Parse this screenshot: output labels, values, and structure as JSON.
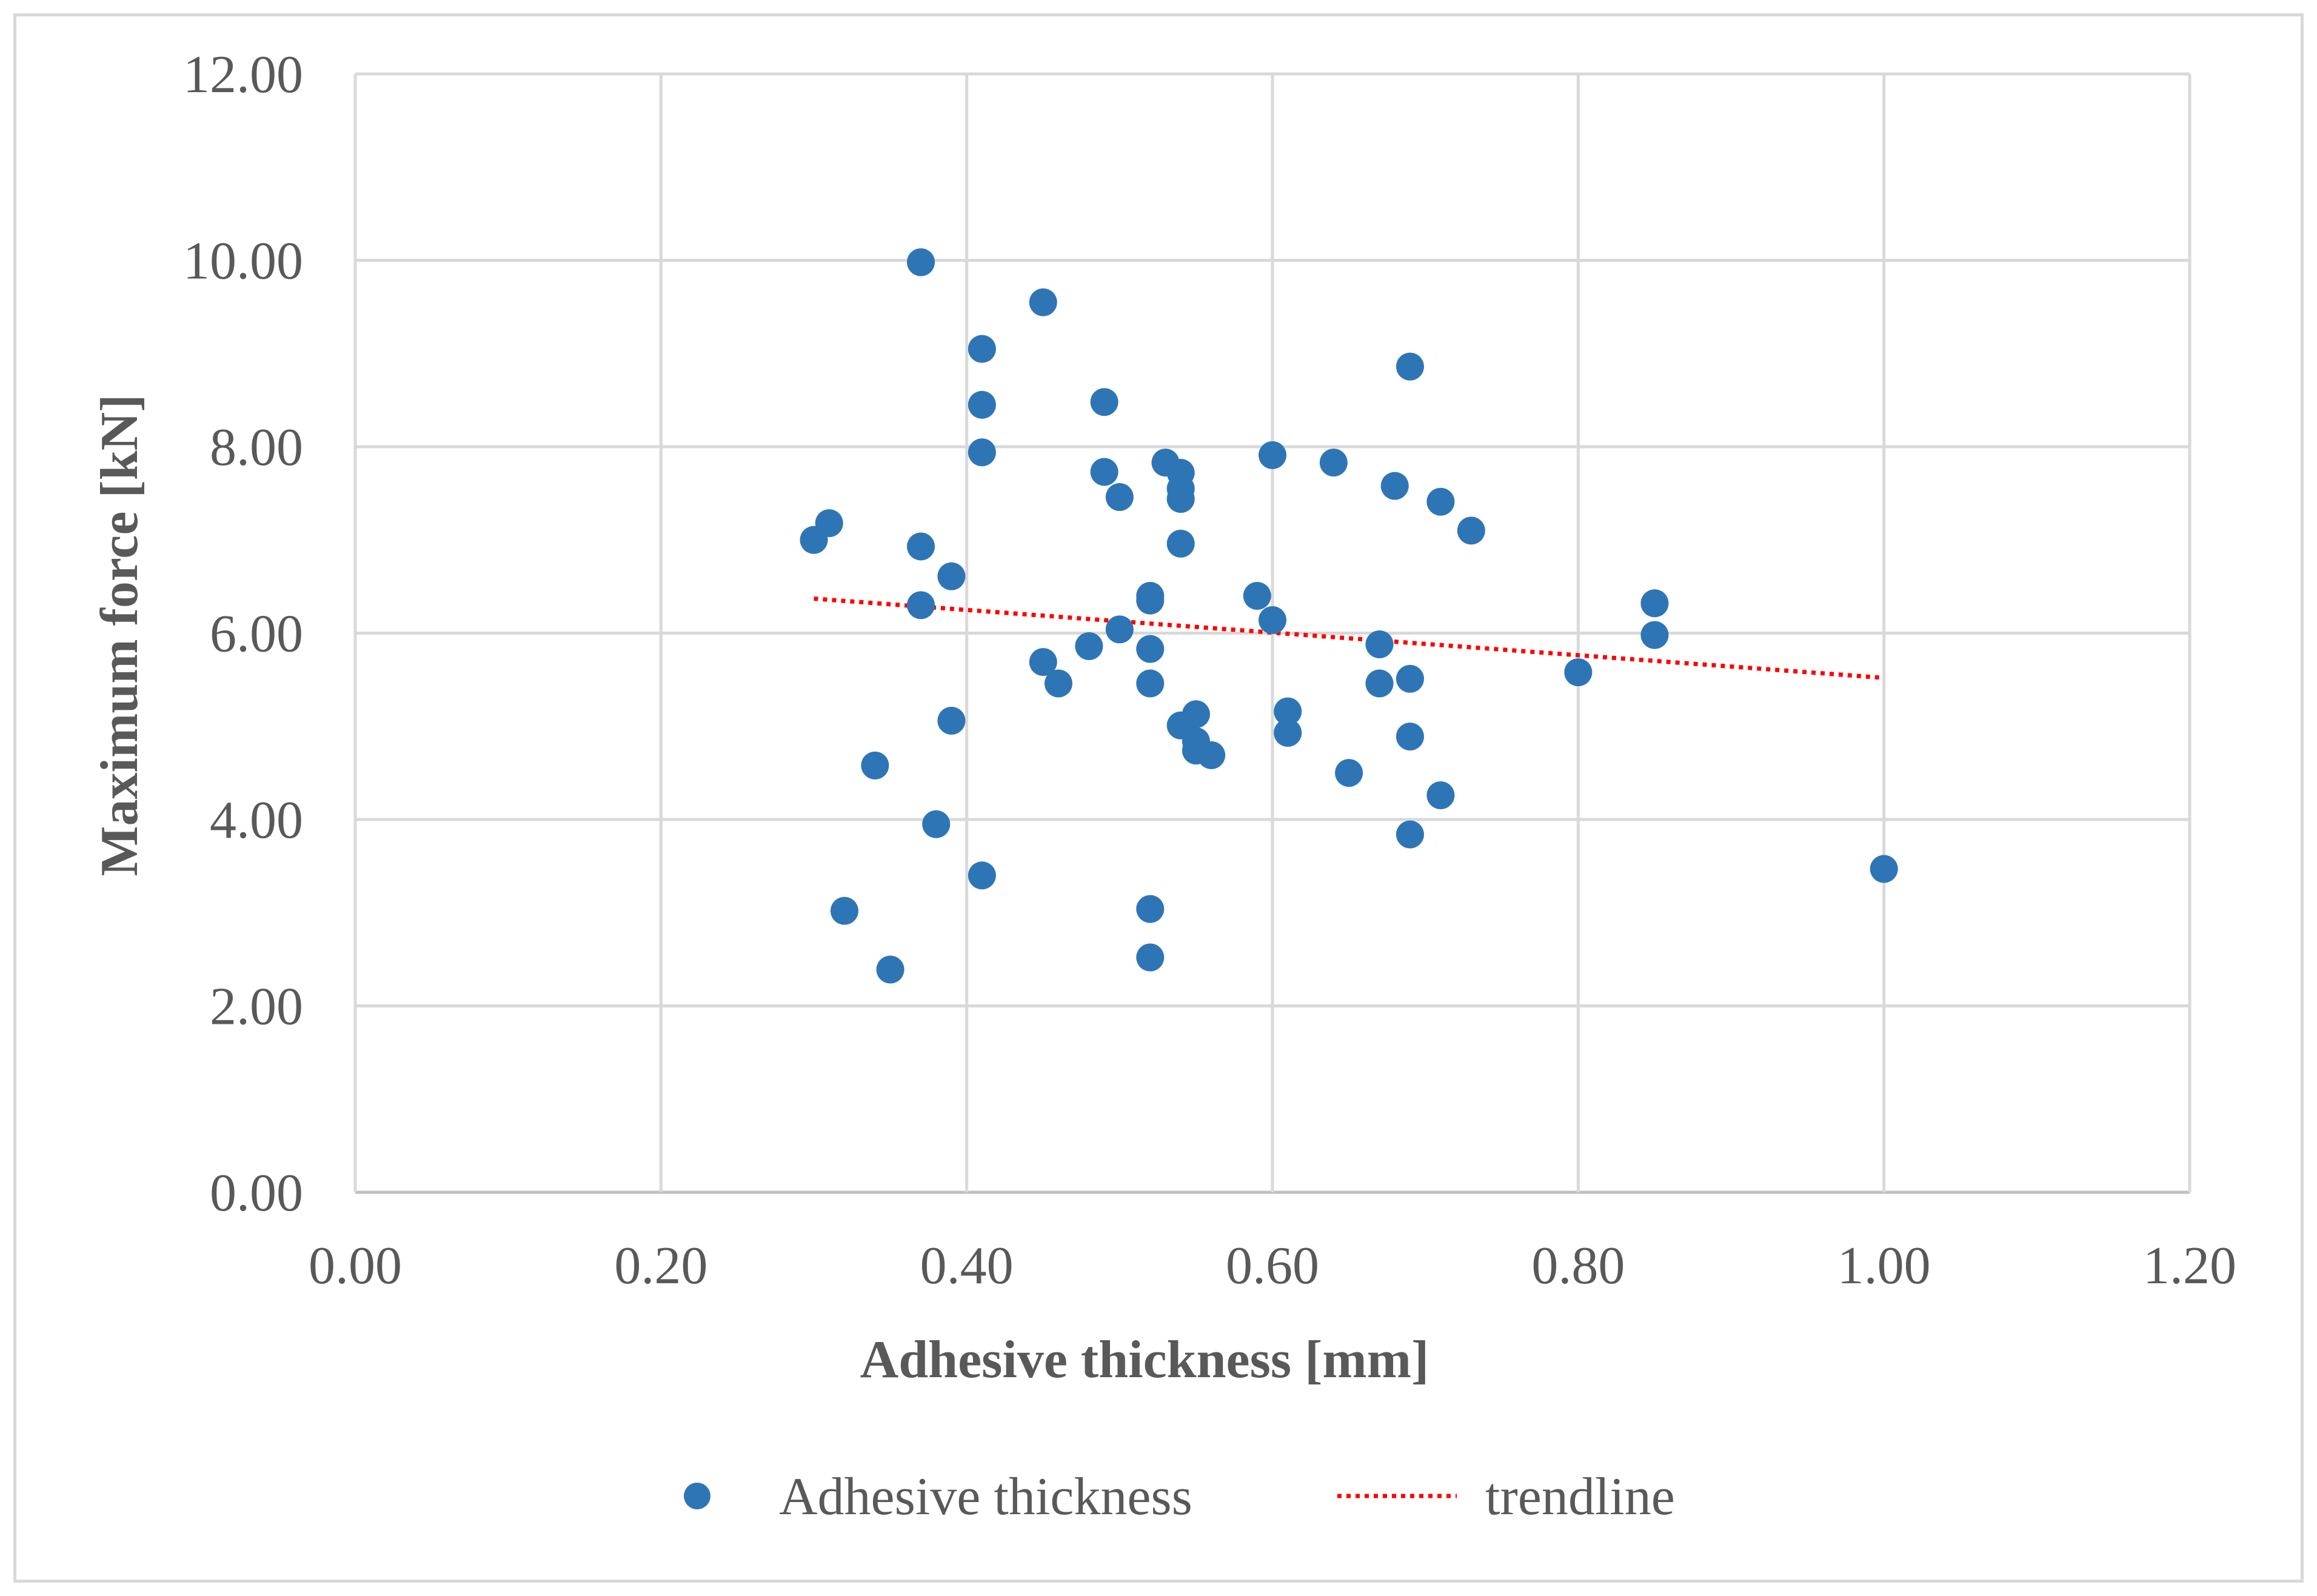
{
  "chart_data": {
    "type": "scatter",
    "title": "",
    "xlabel": "Adhesive thickness [mm]",
    "ylabel": "Maximum force [kN]",
    "xlim": [
      0,
      1.2
    ],
    "ylim": [
      0,
      12
    ],
    "x_ticks": [
      "0.00",
      "0.20",
      "0.40",
      "0.60",
      "0.80",
      "1.00",
      "1.20"
    ],
    "y_ticks": [
      "0.00",
      "2.00",
      "4.00",
      "6.00",
      "8.00",
      "10.00",
      "12.00"
    ],
    "grid": true,
    "legend_position": "bottom",
    "series": [
      {
        "name": "Adhesive thickness",
        "color": "#2e75b6",
        "marker": "circle",
        "points": [
          [
            0.3,
            7.0
          ],
          [
            0.31,
            7.18
          ],
          [
            0.32,
            3.02
          ],
          [
            0.34,
            4.58
          ],
          [
            0.35,
            2.39
          ],
          [
            0.37,
            9.98
          ],
          [
            0.37,
            6.93
          ],
          [
            0.37,
            6.3
          ],
          [
            0.38,
            3.95
          ],
          [
            0.39,
            6.61
          ],
          [
            0.39,
            5.06
          ],
          [
            0.41,
            8.45
          ],
          [
            0.41,
            9.05
          ],
          [
            0.41,
            7.94
          ],
          [
            0.41,
            3.4
          ],
          [
            0.45,
            9.55
          ],
          [
            0.45,
            5.69
          ],
          [
            0.46,
            5.46
          ],
          [
            0.48,
            5.86
          ],
          [
            0.49,
            8.48
          ],
          [
            0.49,
            7.73
          ],
          [
            0.5,
            6.04
          ],
          [
            0.5,
            7.46
          ],
          [
            0.52,
            6.35
          ],
          [
            0.52,
            6.4
          ],
          [
            0.52,
            5.83
          ],
          [
            0.52,
            3.04
          ],
          [
            0.52,
            2.52
          ],
          [
            0.52,
            5.46
          ],
          [
            0.53,
            7.83
          ],
          [
            0.54,
            7.72
          ],
          [
            0.54,
            7.55
          ],
          [
            0.54,
            7.44
          ],
          [
            0.54,
            6.96
          ],
          [
            0.54,
            5.01
          ],
          [
            0.55,
            4.84
          ],
          [
            0.55,
            5.13
          ],
          [
            0.55,
            4.74
          ],
          [
            0.56,
            4.69
          ],
          [
            0.59,
            6.4
          ],
          [
            0.6,
            7.91
          ],
          [
            0.6,
            6.14
          ],
          [
            0.61,
            4.93
          ],
          [
            0.61,
            5.16
          ],
          [
            0.64,
            7.83
          ],
          [
            0.65,
            4.5
          ],
          [
            0.67,
            5.46
          ],
          [
            0.67,
            5.88
          ],
          [
            0.68,
            7.58
          ],
          [
            0.69,
            4.89
          ],
          [
            0.69,
            8.86
          ],
          [
            0.69,
            3.84
          ],
          [
            0.69,
            5.51
          ],
          [
            0.71,
            7.41
          ],
          [
            0.71,
            4.26
          ],
          [
            0.73,
            7.1
          ],
          [
            0.8,
            5.58
          ],
          [
            0.85,
            6.32
          ],
          [
            0.85,
            5.98
          ],
          [
            1.0,
            3.47
          ]
        ]
      },
      {
        "name": "trendline",
        "type": "line",
        "color": "#ff0000",
        "dash": "dotted",
        "points": [
          [
            0.3,
            6.37
          ],
          [
            1.0,
            5.52
          ]
        ]
      }
    ]
  }
}
